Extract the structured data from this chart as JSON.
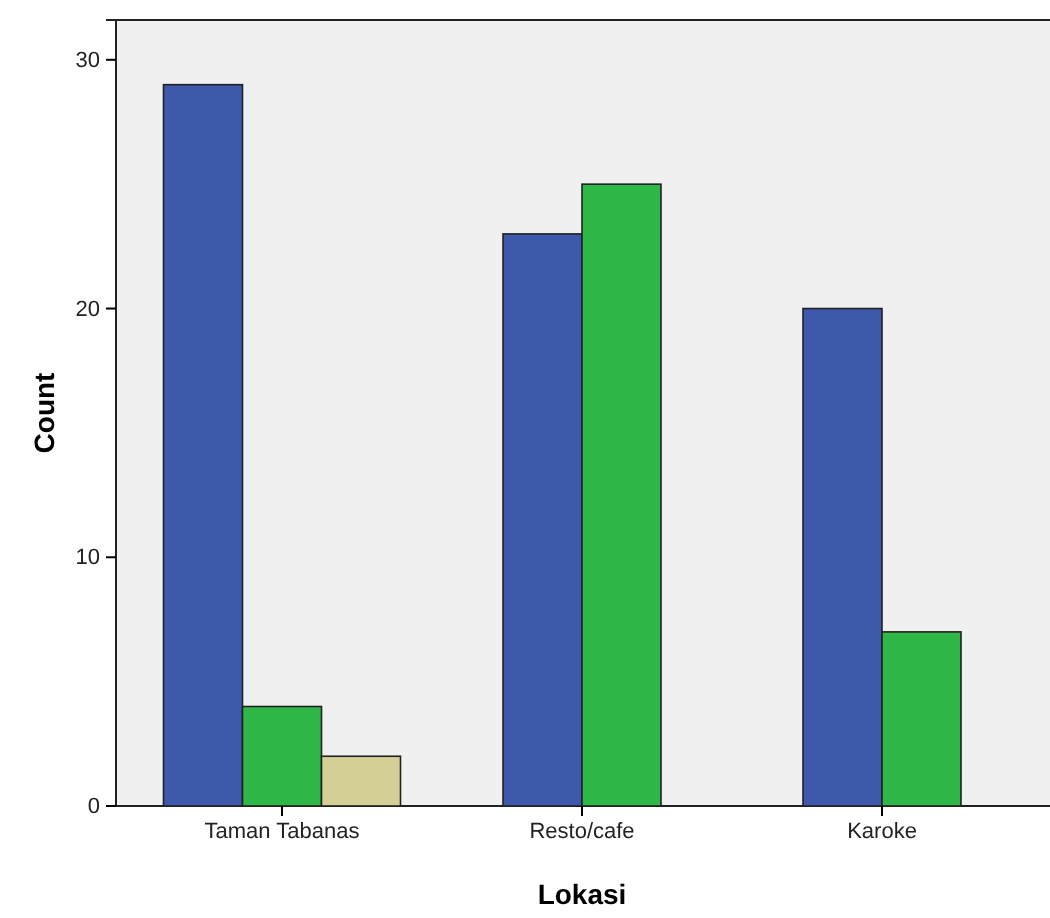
{
  "chart_data": {
    "type": "bar",
    "xlabel": "Lokasi",
    "ylabel": "Count",
    "categories": [
      "Taman Tabanas",
      "Resto/cafe",
      "Karoke"
    ],
    "series": [
      {
        "color": "#3e58ac",
        "values": [
          29,
          23,
          20
        ]
      },
      {
        "color": "#2fb847",
        "values": [
          4,
          25,
          7
        ]
      },
      {
        "color": "#d4cf95",
        "values": [
          2,
          null,
          null
        ]
      }
    ],
    "ylim": [
      0,
      31.6
    ],
    "yticks": [
      0,
      10,
      20,
      30
    ],
    "grid": false,
    "legend": false
  }
}
